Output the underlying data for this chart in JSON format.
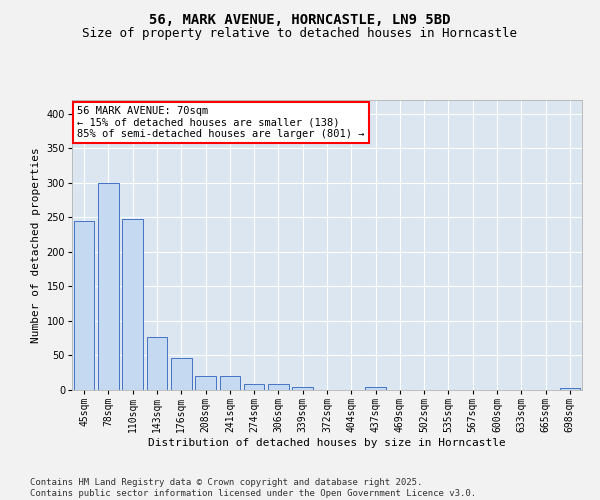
{
  "title1": "56, MARK AVENUE, HORNCASTLE, LN9 5BD",
  "title2": "Size of property relative to detached houses in Horncastle",
  "xlabel": "Distribution of detached houses by size in Horncastle",
  "ylabel": "Number of detached properties",
  "categories": [
    "45sqm",
    "78sqm",
    "110sqm",
    "143sqm",
    "176sqm",
    "208sqm",
    "241sqm",
    "274sqm",
    "306sqm",
    "339sqm",
    "372sqm",
    "404sqm",
    "437sqm",
    "469sqm",
    "502sqm",
    "535sqm",
    "567sqm",
    "600sqm",
    "633sqm",
    "665sqm",
    "698sqm"
  ],
  "values": [
    245,
    300,
    248,
    77,
    46,
    20,
    20,
    9,
    8,
    5,
    0,
    0,
    4,
    0,
    0,
    0,
    0,
    0,
    0,
    0,
    3
  ],
  "bar_color": "#c5d9f1",
  "bar_edgecolor": "#4472c4",
  "bg_color": "#dce6f1",
  "fig_color": "#f2f2f2",
  "grid_color": "#ffffff",
  "annotation_text": "56 MARK AVENUE: 70sqm\n← 15% of detached houses are smaller (138)\n85% of semi-detached houses are larger (801) →",
  "annotation_box_color": "#ffffff",
  "annotation_border_color": "#ff0000",
  "ylim": [
    0,
    420
  ],
  "yticks": [
    0,
    50,
    100,
    150,
    200,
    250,
    300,
    350,
    400
  ],
  "footer": "Contains HM Land Registry data © Crown copyright and database right 2025.\nContains public sector information licensed under the Open Government Licence v3.0.",
  "title1_fontsize": 10,
  "title2_fontsize": 9,
  "xlabel_fontsize": 8,
  "ylabel_fontsize": 8,
  "tick_fontsize": 7,
  "annotation_fontsize": 7.5,
  "footer_fontsize": 6.5
}
